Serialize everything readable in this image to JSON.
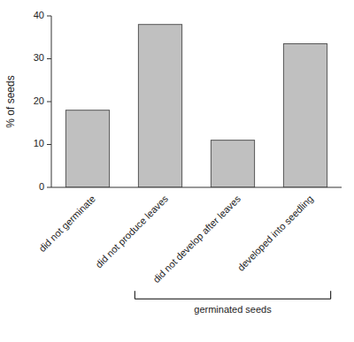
{
  "chart_data": {
    "type": "bar",
    "categories": [
      "did not germinate",
      "did not produce leaves",
      "did not develop after leaves",
      "developed into seedling"
    ],
    "values": [
      18.0,
      38.0,
      11.0,
      33.5
    ],
    "color": "#c0c0c0",
    "ylabel": "% of seeds",
    "ylim": [
      0,
      40
    ],
    "yticks": [
      0,
      10,
      20,
      30,
      40
    ],
    "grid": false,
    "annotation": "germinated seeds"
  }
}
